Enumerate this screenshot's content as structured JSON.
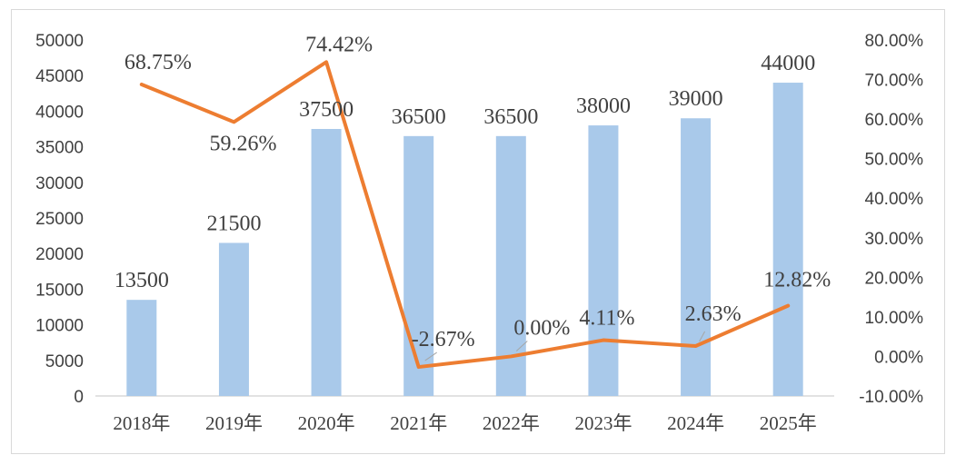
{
  "chart_data": {
    "type": "bar+line",
    "categories": [
      "2018年",
      "2019年",
      "2020年",
      "2021年",
      "2022年",
      "2023年",
      "2024年",
      "2025年"
    ],
    "series": [
      {
        "type": "bar",
        "axis": "left",
        "color": "#a9c9ea",
        "values": [
          13500,
          21500,
          37500,
          36500,
          36500,
          38000,
          39000,
          44000
        ],
        "labels": [
          "13500",
          "21500",
          "37500",
          "36500",
          "36500",
          "38000",
          "39000",
          "44000"
        ]
      },
      {
        "type": "line",
        "axis": "right",
        "color": "#ed7d31",
        "values": [
          68.75,
          59.26,
          74.42,
          -2.67,
          0.0,
          4.11,
          2.63,
          12.82
        ],
        "labels": [
          "68.75%",
          "59.26%",
          "74.42%",
          "-2.67%",
          "0.00%",
          "4.11%",
          "2.63%",
          "12.82%"
        ]
      }
    ],
    "y_left": {
      "ylim": [
        0,
        50000
      ],
      "ticks": [
        "0",
        "5000",
        "10000",
        "15000",
        "20000",
        "25000",
        "30000",
        "35000",
        "40000",
        "45000",
        "50000"
      ]
    },
    "y_right": {
      "ylim": [
        -10,
        80
      ],
      "ticks": [
        "-10.00%",
        "0.00%",
        "10.00%",
        "20.00%",
        "30.00%",
        "40.00%",
        "50.00%",
        "60.00%",
        "70.00%",
        "80.00%"
      ]
    },
    "grid": false,
    "legend": "none"
  }
}
